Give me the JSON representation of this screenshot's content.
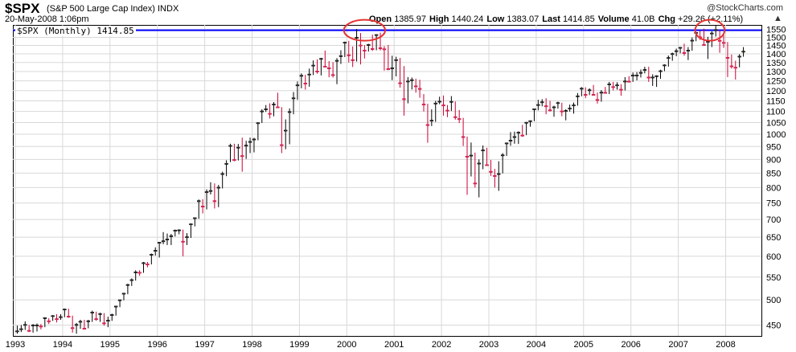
{
  "header": {
    "symbol": "$SPX",
    "name": "(S&P 500 Large Cap Index) INDX",
    "date": "20-May-2008 1:06pm",
    "logo": "@StockCharts.com"
  },
  "quote": {
    "open_label": "Open",
    "open": "1385.97",
    "high_label": "High",
    "high": "1440.24",
    "low_label": "Low",
    "low": "1383.07",
    "last_label": "Last",
    "last": "1414.85",
    "volume_label": "Volume",
    "volume": "41.0B",
    "chg_label": "Chg",
    "chg": "+29.26 (+2.11%)"
  },
  "legend": {
    "label": "$SPX (Monthly) 1414.85"
  },
  "colors": {
    "up": "#000000",
    "down": "#cc0033",
    "resistance": "#0000ff",
    "circle": "#e53333",
    "current": "#ffff00"
  },
  "chart_data": {
    "type": "candlestick",
    "title": "$SPX (Monthly)",
    "y_scale": "log",
    "ylim": [
      430,
      1580
    ],
    "y_ticks": [
      450,
      500,
      550,
      600,
      650,
      700,
      750,
      800,
      850,
      900,
      950,
      1000,
      1050,
      1100,
      1150,
      1200,
      1250,
      1300,
      1350,
      1400,
      1450,
      1500,
      1550
    ],
    "x_ticks": [
      "1993",
      "1994",
      "1995",
      "1996",
      "1997",
      "1998",
      "1999",
      "2000",
      "2001",
      "2002",
      "2003",
      "2004",
      "2005",
      "2006",
      "2007",
      "2008"
    ],
    "grid": true,
    "resistance_level": 1545,
    "circled_periods": [
      [
        "2000-01",
        "2000-09"
      ],
      [
        "2007-06",
        "2007-11"
      ]
    ],
    "ohlc": [
      [
        439,
        449,
        434,
        439
      ],
      [
        443,
        450,
        437,
        443
      ],
      [
        451,
        457,
        441,
        451
      ],
      [
        440,
        450,
        437,
        440
      ],
      [
        450,
        452,
        436,
        450
      ],
      [
        450,
        453,
        438,
        450
      ],
      [
        448,
        452,
        442,
        448
      ],
      [
        464,
        465,
        446,
        464
      ],
      [
        458,
        463,
        452,
        458
      ],
      [
        468,
        469,
        458,
        468
      ],
      [
        462,
        471,
        455,
        462
      ],
      [
        466,
        471,
        460,
        466
      ],
      [
        481,
        482,
        465,
        481
      ],
      [
        467,
        482,
        464,
        467
      ],
      [
        445,
        468,
        436,
        445
      ],
      [
        451,
        454,
        434,
        451
      ],
      [
        457,
        460,
        443,
        457
      ],
      [
        444,
        460,
        442,
        444
      ],
      [
        458,
        460,
        444,
        458
      ],
      [
        475,
        478,
        456,
        475
      ],
      [
        462,
        476,
        458,
        462
      ],
      [
        472,
        474,
        456,
        472
      ],
      [
        454,
        473,
        449,
        454
      ],
      [
        459,
        466,
        446,
        459
      ],
      [
        470,
        472,
        458,
        470
      ],
      [
        487,
        488,
        468,
        487
      ],
      [
        500,
        501,
        485,
        500
      ],
      [
        514,
        515,
        499,
        514
      ],
      [
        533,
        535,
        512,
        533
      ],
      [
        544,
        547,
        530,
        544
      ],
      [
        562,
        566,
        542,
        562
      ],
      [
        561,
        566,
        553,
        561
      ],
      [
        584,
        586,
        560,
        584
      ],
      [
        581,
        586,
        573,
        581
      ],
      [
        605,
        607,
        580,
        605
      ],
      [
        615,
        623,
        602,
        615
      ],
      [
        636,
        637,
        597,
        636
      ],
      [
        640,
        664,
        631,
        640
      ],
      [
        645,
        660,
        629,
        645
      ],
      [
        654,
        659,
        629,
        654
      ],
      [
        669,
        671,
        652,
        669
      ],
      [
        670,
        672,
        658,
        670
      ],
      [
        639,
        671,
        600,
        639
      ],
      [
        651,
        661,
        629,
        651
      ],
      [
        687,
        688,
        648,
        687
      ],
      [
        705,
        706,
        680,
        705
      ],
      [
        757,
        761,
        702,
        757
      ],
      [
        740,
        762,
        718,
        740
      ],
      [
        786,
        794,
        730,
        786
      ],
      [
        790,
        818,
        777,
        790
      ],
      [
        757,
        814,
        733,
        757
      ],
      [
        801,
        809,
        737,
        801
      ],
      [
        848,
        855,
        797,
        848
      ],
      [
        885,
        897,
        839,
        885
      ],
      [
        954,
        961,
        890,
        954
      ],
      [
        899,
        961,
        893,
        899
      ],
      [
        947,
        960,
        896,
        947
      ],
      [
        914,
        986,
        855,
        914
      ],
      [
        955,
        973,
        902,
        955
      ],
      [
        970,
        986,
        924,
        970
      ],
      [
        980,
        985,
        927,
        980
      ],
      [
        1049,
        1051,
        975,
        1049
      ],
      [
        1102,
        1110,
        1048,
        1102
      ],
      [
        1112,
        1130,
        1098,
        1112
      ],
      [
        1091,
        1138,
        1068,
        1091
      ],
      [
        1134,
        1144,
        1078,
        1134
      ],
      [
        1121,
        1190,
        1119,
        1121
      ],
      [
        957,
        1120,
        924,
        957
      ],
      [
        1017,
        1064,
        939,
        1017
      ],
      [
        1099,
        1114,
        959,
        1099
      ],
      [
        1164,
        1193,
        1087,
        1164
      ],
      [
        1229,
        1247,
        1155,
        1229
      ],
      [
        1279,
        1290,
        1212,
        1279
      ],
      [
        1238,
        1282,
        1205,
        1238
      ],
      [
        1286,
        1316,
        1220,
        1286
      ],
      [
        1335,
        1362,
        1281,
        1335
      ],
      [
        1302,
        1368,
        1288,
        1302
      ],
      [
        1373,
        1376,
        1279,
        1373
      ],
      [
        1329,
        1419,
        1326,
        1329
      ],
      [
        1320,
        1358,
        1269,
        1320
      ],
      [
        1283,
        1352,
        1268,
        1283
      ],
      [
        1362,
        1375,
        1233,
        1362
      ],
      [
        1389,
        1421,
        1342,
        1389
      ],
      [
        1469,
        1473,
        1381,
        1469
      ],
      [
        1394,
        1478,
        1350,
        1394
      ],
      [
        1366,
        1444,
        1325,
        1366
      ],
      [
        1499,
        1553,
        1356,
        1499
      ],
      [
        1452,
        1527,
        1339,
        1452
      ],
      [
        1421,
        1452,
        1373,
        1421
      ],
      [
        1455,
        1460,
        1413,
        1455
      ],
      [
        1431,
        1517,
        1417,
        1431
      ],
      [
        1517,
        1519,
        1421,
        1517
      ],
      [
        1436,
        1530,
        1420,
        1436
      ],
      [
        1429,
        1446,
        1305,
        1429
      ],
      [
        1315,
        1453,
        1307,
        1315
      ],
      [
        1320,
        1389,
        1254,
        1320
      ],
      [
        1366,
        1383,
        1274,
        1366
      ],
      [
        1240,
        1376,
        1215,
        1240
      ],
      [
        1160,
        1330,
        1081,
        1160
      ],
      [
        1249,
        1270,
        1138,
        1249
      ],
      [
        1256,
        1268,
        1206,
        1256
      ],
      [
        1224,
        1262,
        1190,
        1224
      ],
      [
        1211,
        1256,
        1165,
        1211
      ],
      [
        1134,
        1183,
        1100,
        1134
      ],
      [
        1041,
        1136,
        965,
        1041
      ],
      [
        1060,
        1110,
        1035,
        1060
      ],
      [
        1139,
        1150,
        1053,
        1139
      ],
      [
        1148,
        1170,
        1134,
        1148
      ],
      [
        1130,
        1176,
        1081,
        1130
      ],
      [
        1106,
        1130,
        1074,
        1106
      ],
      [
        1147,
        1173,
        1102,
        1147
      ],
      [
        1076,
        1147,
        1063,
        1076
      ],
      [
        1067,
        1107,
        1048,
        1067
      ],
      [
        990,
        1071,
        952,
        990
      ],
      [
        912,
        990,
        776,
        912
      ],
      [
        916,
        966,
        838,
        916
      ],
      [
        815,
        926,
        800,
        815
      ],
      [
        886,
        900,
        768,
        886
      ],
      [
        936,
        954,
        864,
        936
      ],
      [
        880,
        945,
        879,
        880
      ],
      [
        856,
        898,
        840,
        856
      ],
      [
        841,
        865,
        800,
        841
      ],
      [
        848,
        893,
        789,
        848
      ],
      [
        917,
        924,
        849,
        917
      ],
      [
        964,
        966,
        913,
        964
      ],
      [
        975,
        1009,
        953,
        975
      ],
      [
        990,
        1011,
        961,
        990
      ],
      [
        1008,
        1012,
        960,
        1008
      ],
      [
        996,
        1040,
        990,
        996
      ],
      [
        1051,
        1053,
        996,
        1051
      ],
      [
        1058,
        1060,
        1032,
        1058
      ],
      [
        1112,
        1112,
        1056,
        1112
      ],
      [
        1132,
        1155,
        1105,
        1132
      ],
      [
        1145,
        1158,
        1124,
        1145
      ],
      [
        1126,
        1163,
        1087,
        1126
      ],
      [
        1107,
        1150,
        1100,
        1107
      ],
      [
        1121,
        1127,
        1076,
        1121
      ],
      [
        1141,
        1146,
        1113,
        1141
      ],
      [
        1102,
        1141,
        1078,
        1102
      ],
      [
        1104,
        1110,
        1060,
        1104
      ],
      [
        1115,
        1132,
        1099,
        1115
      ],
      [
        1130,
        1142,
        1090,
        1130
      ],
      [
        1174,
        1188,
        1127,
        1174
      ],
      [
        1212,
        1218,
        1172,
        1212
      ],
      [
        1181,
        1217,
        1163,
        1181
      ],
      [
        1204,
        1212,
        1178,
        1204
      ],
      [
        1181,
        1229,
        1176,
        1181
      ],
      [
        1156,
        1191,
        1137,
        1156
      ],
      [
        1192,
        1203,
        1146,
        1192
      ],
      [
        1191,
        1219,
        1188,
        1191
      ],
      [
        1234,
        1245,
        1183,
        1234
      ],
      [
        1220,
        1245,
        1201,
        1220
      ],
      [
        1229,
        1243,
        1205,
        1229
      ],
      [
        1207,
        1233,
        1175,
        1207
      ],
      [
        1249,
        1270,
        1201,
        1249
      ],
      [
        1248,
        1275,
        1246,
        1248
      ],
      [
        1280,
        1295,
        1245,
        1280
      ],
      [
        1281,
        1297,
        1253,
        1281
      ],
      [
        1295,
        1311,
        1268,
        1295
      ],
      [
        1311,
        1326,
        1290,
        1311
      ],
      [
        1270,
        1326,
        1245,
        1270
      ],
      [
        1270,
        1285,
        1224,
        1270
      ],
      [
        1277,
        1280,
        1219,
        1277
      ],
      [
        1304,
        1310,
        1261,
        1304
      ],
      [
        1336,
        1340,
        1302,
        1336
      ],
      [
        1378,
        1390,
        1327,
        1378
      ],
      [
        1401,
        1407,
        1360,
        1401
      ],
      [
        1418,
        1431,
        1386,
        1418
      ],
      [
        1438,
        1441,
        1403,
        1438
      ],
      [
        1407,
        1461,
        1389,
        1407
      ],
      [
        1421,
        1440,
        1364,
        1421
      ],
      [
        1482,
        1499,
        1418,
        1482
      ],
      [
        1531,
        1532,
        1476,
        1531
      ],
      [
        1503,
        1540,
        1484,
        1503
      ],
      [
        1455,
        1556,
        1455,
        1455
      ],
      [
        1474,
        1503,
        1370,
        1474
      ],
      [
        1527,
        1538,
        1440,
        1527
      ],
      [
        1549,
        1576,
        1505,
        1549
      ],
      [
        1481,
        1545,
        1406,
        1481
      ],
      [
        1468,
        1523,
        1435,
        1468
      ],
      [
        1379,
        1471,
        1270,
        1379
      ],
      [
        1331,
        1396,
        1316,
        1331
      ],
      [
        1323,
        1360,
        1257,
        1323
      ],
      [
        1386,
        1398,
        1323,
        1386
      ],
      [
        1415,
        1440,
        1383,
        1415
      ]
    ]
  }
}
